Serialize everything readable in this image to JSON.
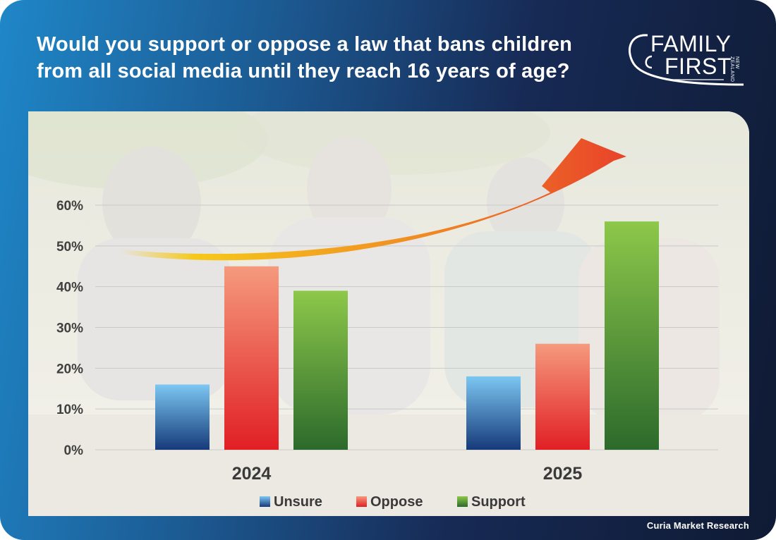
{
  "title_line1": "Would you support or oppose a law that bans children",
  "title_line2": "from all social media until they reach 16 years of age?",
  "logo": {
    "line1": "FAMILY",
    "line2": "FIRST",
    "sub": "NEW ZEALAND"
  },
  "source": "Curia Market Research",
  "colors": {
    "unsure": "#2a6fb3",
    "oppose": "#ee3a33",
    "support": "#4f9a2f",
    "arrow_start": "#f6c81a",
    "arrow_end": "#e8432a"
  },
  "chart_data": {
    "type": "bar",
    "title": "Would you support or oppose a law that bans children from all social media until they reach 16 years of age?",
    "categories": [
      "2024",
      "2025"
    ],
    "series": [
      {
        "name": "Unsure",
        "values": [
          16,
          18
        ]
      },
      {
        "name": "Oppose",
        "values": [
          45,
          26
        ]
      },
      {
        "name": "Support",
        "values": [
          39,
          56
        ]
      }
    ],
    "y_ticks": [
      "0%",
      "10%",
      "20%",
      "30%",
      "40%",
      "50%",
      "60%"
    ],
    "ylim": [
      0,
      60
    ],
    "xlabel": "",
    "ylabel": "",
    "legend_position": "bottom"
  }
}
